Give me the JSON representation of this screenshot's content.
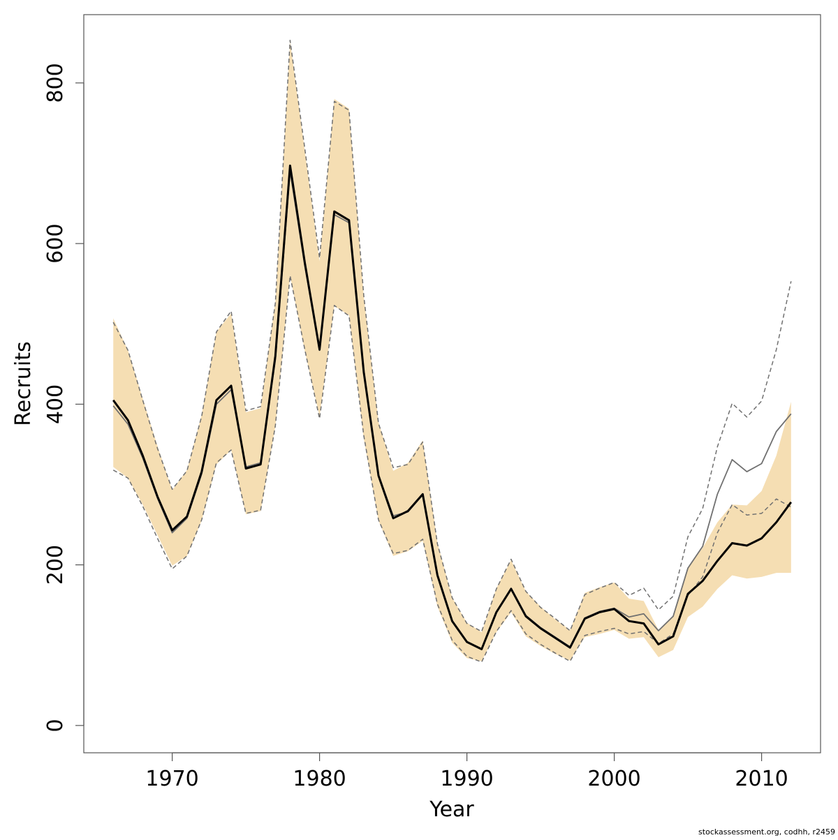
{
  "chart_data": {
    "type": "line",
    "title": "",
    "xlabel": "Year",
    "ylabel": "Recruits",
    "xlim": [
      1964,
      2014
    ],
    "ylim": [
      -34,
      885
    ],
    "x_ticks": [
      "1970",
      "1980",
      "1990",
      "2000",
      "2010"
    ],
    "y_ticks": [
      "0",
      "200",
      "400",
      "600",
      "800"
    ],
    "grid": false,
    "legend": "none",
    "colors": {
      "band": "#f5deb3",
      "estimate": "#000000",
      "previous": "#707070",
      "previous_ci": "#707070",
      "frame": "#555555"
    },
    "x": [
      1966,
      1967,
      1968,
      1969,
      1970,
      1971,
      1972,
      1973,
      1974,
      1975,
      1976,
      1977,
      1978,
      1979,
      1980,
      1981,
      1982,
      1983,
      1984,
      1985,
      1986,
      1987,
      1988,
      1989,
      1990,
      1991,
      1992,
      1993,
      1994,
      1995,
      1996,
      1997,
      1998,
      1999,
      2000,
      2001,
      2002,
      2003,
      2004,
      2005,
      2006,
      2007,
      2008,
      2009,
      2010,
      2011,
      2012
    ],
    "series": [
      {
        "key": "band",
        "lower": [
          322,
          308,
          275,
          237,
          199,
          211,
          255,
          325,
          343,
          263,
          267,
          372,
          560,
          466,
          385,
          522,
          511,
          357,
          255,
          211,
          217,
          230,
          148,
          103,
          84,
          80,
          116,
          141,
          111,
          99,
          89,
          81,
          110,
          114,
          119,
          108,
          110,
          85,
          94,
          135,
          148,
          170,
          187,
          183,
          185,
          190,
          190
        ],
        "upper": [
          507,
          467,
          407,
          348,
          293,
          318,
          387,
          490,
          513,
          390,
          395,
          528,
          852,
          715,
          578,
          780,
          768,
          534,
          378,
          317,
          327,
          355,
          228,
          159,
          128,
          116,
          171,
          206,
          167,
          148,
          132,
          119,
          165,
          172,
          178,
          158,
          155,
          119,
          137,
          197,
          221,
          253,
          275,
          274,
          292,
          336,
          403
        ]
      },
      {
        "key": "estimate",
        "values": [
          405,
          380,
          336,
          285,
          243,
          260,
          316,
          405,
          423,
          320,
          325,
          460,
          697,
          576,
          468,
          640,
          629,
          440,
          311,
          258,
          267,
          288,
          187,
          130,
          104,
          95,
          141,
          170,
          136,
          121,
          109,
          97,
          133,
          141,
          145,
          130,
          127,
          101,
          111,
          164,
          180,
          205,
          227,
          224,
          233,
          253,
          278
        ]
      },
      {
        "key": "previous",
        "values": [
          398,
          375,
          333,
          283,
          240,
          258,
          313,
          400,
          418,
          322,
          327,
          455,
          690,
          572,
          467,
          636,
          626,
          440,
          312,
          261,
          266,
          287,
          186,
          130,
          104,
          95,
          141,
          171,
          137,
          122,
          110,
          98,
          134,
          142,
          146,
          135,
          139,
          118,
          136,
          196,
          223,
          288,
          331,
          316,
          326,
          366,
          388
        ]
      },
      {
        "key": "previous_lower",
        "values": [
          318,
          308,
          273,
          233,
          195,
          211,
          256,
          327,
          343,
          264,
          268,
          373,
          560,
          468,
          382,
          523,
          510,
          361,
          256,
          214,
          218,
          232,
          151,
          106,
          86,
          79,
          117,
          143,
          114,
          101,
          90,
          80,
          112,
          117,
          121,
          114,
          117,
          102,
          114,
          162,
          185,
          240,
          275,
          262,
          264,
          282,
          272
        ]
      },
      {
        "key": "previous_upper",
        "values": [
          502,
          467,
          405,
          345,
          294,
          317,
          385,
          490,
          516,
          392,
          397,
          526,
          853,
          718,
          582,
          777,
          766,
          535,
          376,
          321,
          325,
          353,
          226,
          159,
          127,
          117,
          170,
          207,
          167,
          147,
          133,
          118,
          163,
          171,
          178,
          162,
          171,
          144,
          161,
          235,
          270,
          347,
          401,
          384,
          404,
          468,
          553
        ]
      }
    ]
  },
  "footer": {
    "credit": "stockassessment.org, codhh, r2459"
  }
}
